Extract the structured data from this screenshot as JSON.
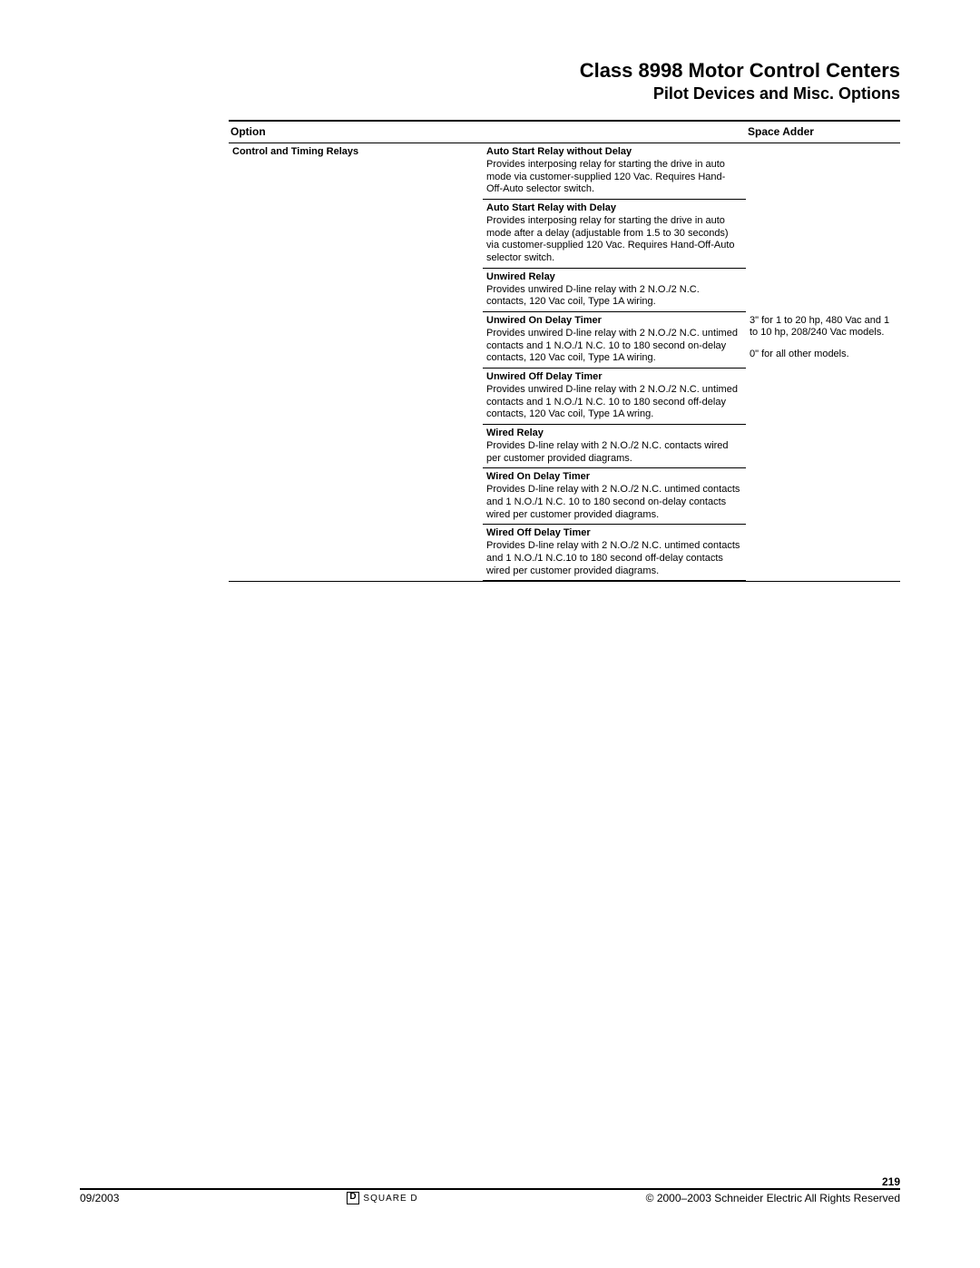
{
  "header": {
    "title": "Class 8998 Motor Control Centers",
    "subtitle": "Pilot Devices and Misc. Options"
  },
  "table": {
    "columns": {
      "option": "Option",
      "space_adder": "Space Adder"
    },
    "option_label": "Control and Timing Relays",
    "space_adder_line1": "3\" for 1 to 20 hp, 480 Vac and 1 to 10 hp, 208/240 Vac models.",
    "space_adder_line2": "0\" for all other models.",
    "rows": [
      {
        "title": "Auto Start Relay without Delay",
        "body": "Provides interposing relay for starting the drive in auto mode via customer-supplied 120 Vac. Requires Hand-Off-Auto selector switch."
      },
      {
        "title": "Auto Start Relay with Delay",
        "body": "Provides interposing relay for starting the drive in auto mode after a delay (adjustable from 1.5 to 30 seconds) via customer-supplied 120 Vac. Requires Hand-Off-Auto selector switch."
      },
      {
        "title": "Unwired Relay",
        "body": "Provides unwired D-line relay with 2 N.O./2 N.C. contacts, 120 Vac coil, Type 1A wiring."
      },
      {
        "title": "Unwired On Delay Timer",
        "body": "Provides unwired D-line relay with 2 N.O./2 N.C. untimed contacts and 1 N.O./1 N.C. 10 to 180 second on-delay contacts, 120 Vac coil, Type 1A wiring."
      },
      {
        "title": "Unwired Off Delay Timer",
        "body": "Provides unwired D-line relay with 2 N.O./2 N.C. untimed contacts and 1 N.O./1 N.C. 10 to 180 second off-delay contacts, 120 Vac coil, Type 1A wring."
      },
      {
        "title": "Wired Relay",
        "body": "Provides D-line relay with 2 N.O./2 N.C. contacts wired per customer provided diagrams."
      },
      {
        "title": "Wired On Delay Timer",
        "body": "Provides D-line relay with 2 N.O./2 N.C. untimed contacts and 1 N.O./1 N.C. 10 to 180 second on-delay contacts wired per customer provided diagrams."
      },
      {
        "title": "Wired Off Delay Timer",
        "body": "Provides D-line relay with 2 N.O./2 N.C. untimed contacts and 1 N.O./1 N.C.10 to 180 second off-delay contacts wired per customer provided diagrams."
      }
    ]
  },
  "footer": {
    "date": "09/2003",
    "logo_text": "SQUARE D",
    "copyright": "© 2000–2003 Schneider Electric  All Rights Reserved",
    "page_number": "219"
  }
}
